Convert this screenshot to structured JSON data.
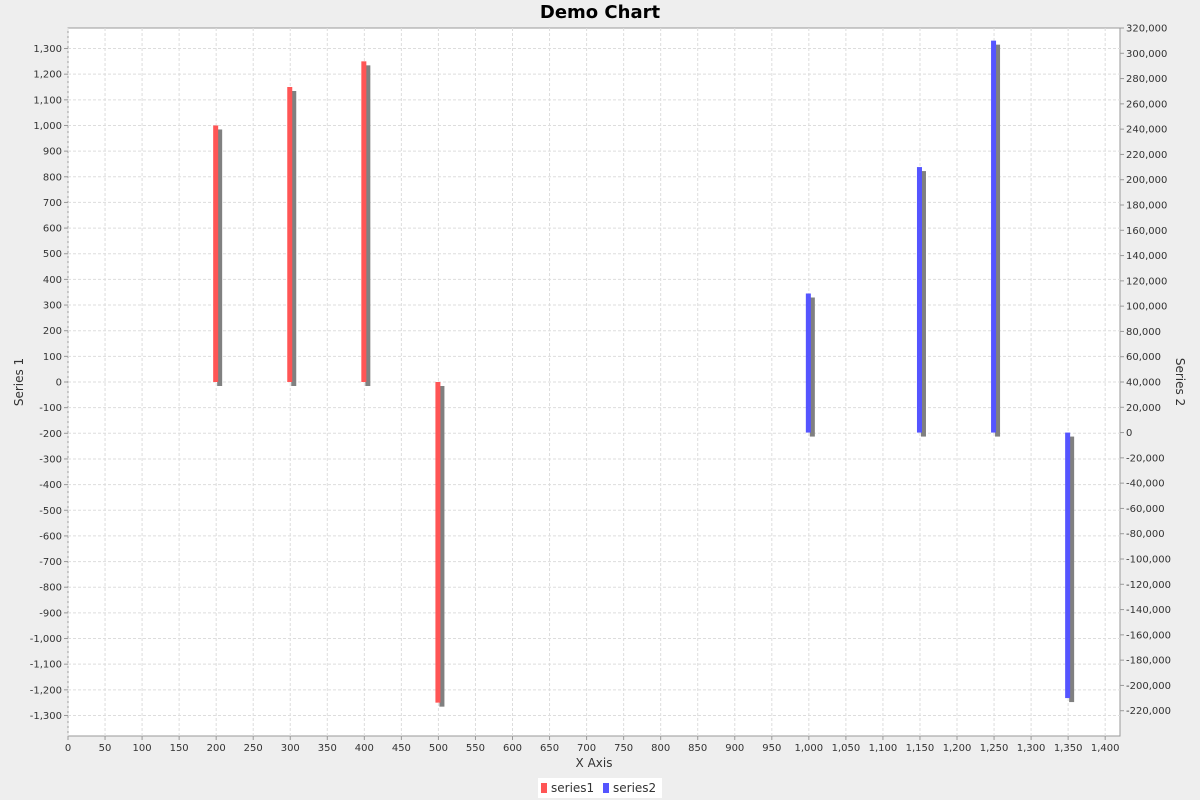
{
  "chart_data": {
    "type": "bar",
    "title": "Demo Chart",
    "xlabel": "X Axis",
    "ylabel": "Series 1",
    "ylabel_right": "Series 2",
    "xlim": [
      0,
      1420
    ],
    "ylim": [
      -1380,
      1380
    ],
    "ylim_right": [
      -240000,
      320000
    ],
    "x_ticks": [
      0,
      50,
      100,
      150,
      200,
      250,
      300,
      350,
      400,
      450,
      500,
      550,
      600,
      650,
      700,
      750,
      800,
      850,
      900,
      950,
      1000,
      1050,
      1100,
      1150,
      1200,
      1250,
      1300,
      1350,
      1400
    ],
    "y_ticks": [
      -1300,
      -1200,
      -1100,
      -1000,
      -900,
      -800,
      -700,
      -600,
      -500,
      -400,
      -300,
      -200,
      -100,
      0,
      100,
      200,
      300,
      400,
      500,
      600,
      700,
      800,
      900,
      1000,
      1100,
      1200,
      1300
    ],
    "y_ticks_right": [
      -220000,
      -200000,
      -180000,
      -160000,
      -140000,
      -120000,
      -100000,
      -80000,
      -60000,
      -40000,
      -20000,
      0,
      20000,
      40000,
      60000,
      80000,
      100000,
      120000,
      140000,
      160000,
      180000,
      200000,
      220000,
      240000,
      260000,
      280000,
      300000,
      320000
    ],
    "grid": true,
    "legend_position": "bottom",
    "series": [
      {
        "name": "series1",
        "axis": "left",
        "color": "#ff5555",
        "points": [
          {
            "x": 200,
            "y": 1000
          },
          {
            "x": 300,
            "y": 1150
          },
          {
            "x": 400,
            "y": 1250
          },
          {
            "x": 500,
            "y": -1250
          }
        ]
      },
      {
        "name": "series2",
        "axis": "right",
        "color": "#5555ff",
        "points": [
          {
            "x": 1000,
            "y": 110000
          },
          {
            "x": 1150,
            "y": 210000
          },
          {
            "x": 1250,
            "y": 310000
          },
          {
            "x": 1350,
            "y": -210000
          }
        ]
      }
    ],
    "bar_width": 5,
    "shadow_color": "#808080"
  },
  "colors": {
    "background": "#eeeeee",
    "plot_background": "#ffffff",
    "gridline": "#dddddd",
    "axis_line": "#999999"
  }
}
